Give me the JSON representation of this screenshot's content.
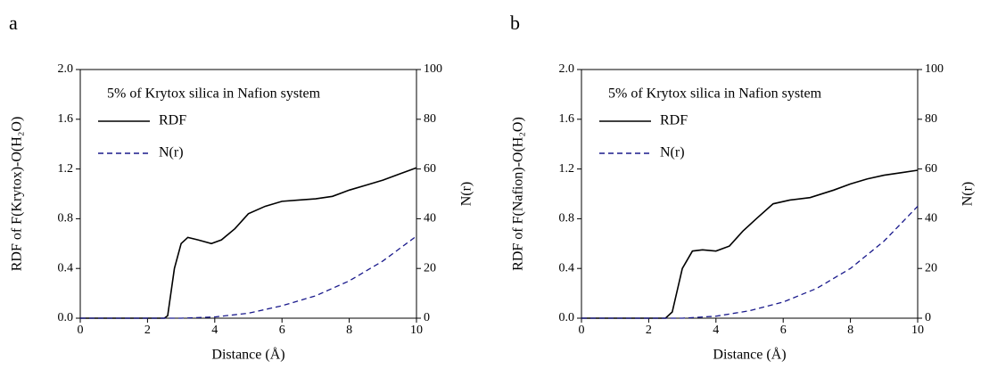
{
  "chart_data": [
    {
      "type": "line",
      "panel": "a",
      "annotation": "5% of Krytox silica in Nafion system",
      "xlabel": "Distance (Å)",
      "ylabel": "RDF of F(Krytox)-O(H₂O)",
      "y2label": "N(r)",
      "xlim": [
        0,
        10
      ],
      "xticks": [
        0,
        2,
        4,
        6,
        8,
        10
      ],
      "ylim": [
        0,
        2
      ],
      "yticks": [
        {
          "value": 0,
          "label": "0.0"
        },
        {
          "value": 0.4,
          "label": "0.4"
        },
        {
          "value": 0.8,
          "label": "0.8"
        },
        {
          "value": 1.2,
          "label": "1.2"
        },
        {
          "value": 1.6,
          "label": "1.6"
        },
        {
          "value": 2,
          "label": "2.0"
        }
      ],
      "y2lim": [
        0,
        100
      ],
      "y2ticks": [
        0,
        20,
        40,
        60,
        80,
        100
      ],
      "series": [
        {
          "name": "RDF",
          "color": "#000000",
          "dash": false,
          "x": [
            0,
            1,
            2,
            2.5,
            2.6,
            2.8,
            3.0,
            3.2,
            3.5,
            3.9,
            4.2,
            4.6,
            5.0,
            5.5,
            6.0,
            6.5,
            7.0,
            7.5,
            8.0,
            8.5,
            9.0,
            9.5,
            10
          ],
          "values": [
            0,
            0,
            0,
            0,
            0.02,
            0.4,
            0.6,
            0.65,
            0.63,
            0.6,
            0.63,
            0.72,
            0.84,
            0.9,
            0.94,
            0.95,
            0.96,
            0.98,
            1.03,
            1.07,
            1.11,
            1.16,
            1.21
          ]
        },
        {
          "name": "N(r)",
          "color": "#1a1a8c",
          "dash": true,
          "axis": "y2",
          "x": [
            0,
            1,
            2,
            3,
            4,
            5,
            6,
            7,
            8,
            9,
            10
          ],
          "values": [
            0,
            0,
            0,
            0,
            0.5,
            2,
            5,
            9,
            15,
            23,
            33
          ]
        }
      ]
    },
    {
      "type": "line",
      "panel": "b",
      "annotation": "5% of Krytox silica in Nafion system",
      "xlabel": "Distance (Å)",
      "ylabel": "RDF of F(Nafion)-O(H₂O)",
      "y2label": "N(r)",
      "xlim": [
        0,
        10
      ],
      "xticks": [
        0,
        2,
        4,
        6,
        8,
        10
      ],
      "ylim": [
        0,
        2
      ],
      "yticks": [
        {
          "value": 0,
          "label": "0.0"
        },
        {
          "value": 0.4,
          "label": "0.4"
        },
        {
          "value": 0.8,
          "label": "0.8"
        },
        {
          "value": 1.2,
          "label": "1.2"
        },
        {
          "value": 1.6,
          "label": "1.6"
        },
        {
          "value": 2,
          "label": "2.0"
        }
      ],
      "y2lim": [
        0,
        100
      ],
      "y2ticks": [
        0,
        20,
        40,
        60,
        80,
        100
      ],
      "series": [
        {
          "name": "RDF",
          "color": "#000000",
          "dash": false,
          "x": [
            0,
            1,
            2,
            2.5,
            2.7,
            3.0,
            3.3,
            3.6,
            4.0,
            4.4,
            4.8,
            5.2,
            5.7,
            6.2,
            6.8,
            7.5,
            8.0,
            8.5,
            9.0,
            9.5,
            10
          ],
          "values": [
            0,
            0,
            0,
            0,
            0.05,
            0.4,
            0.54,
            0.55,
            0.54,
            0.58,
            0.7,
            0.8,
            0.92,
            0.95,
            0.97,
            1.03,
            1.08,
            1.12,
            1.15,
            1.17,
            1.19
          ]
        },
        {
          "name": "N(r)",
          "color": "#1a1a8c",
          "dash": true,
          "axis": "y2",
          "x": [
            0,
            1,
            2,
            3,
            4,
            5,
            6,
            7,
            8,
            9,
            10
          ],
          "values": [
            0,
            0,
            0,
            0,
            0.8,
            3,
            6.5,
            12,
            20,
            31,
            45
          ]
        }
      ]
    }
  ]
}
